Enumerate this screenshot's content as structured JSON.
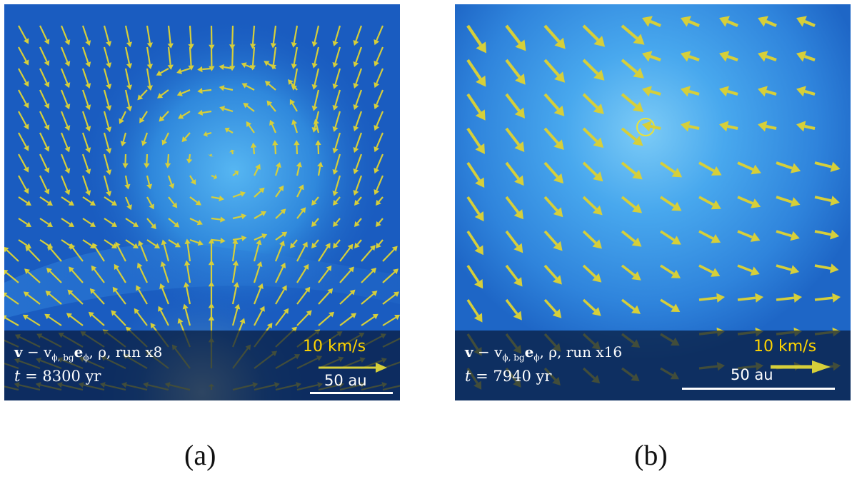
{
  "panels": [
    {
      "id": "a",
      "formula_main": "v",
      "formula_minus": " − v",
      "formula_sub": "ϕ, bg",
      "formula_e": "e",
      "formula_esub": "ϕ",
      "formula_tail": ", ρ, run x8",
      "time_t": "t",
      "time_value": " = 8300 yr",
      "speed_label": "10 km/s",
      "scale_label": "50 au",
      "caption": "(a)"
    },
    {
      "id": "b",
      "formula_main": "v",
      "formula_minus": " − v",
      "formula_sub": "ϕ, bg",
      "formula_e": "e",
      "formula_esub": "ϕ",
      "formula_tail": ", ρ, run x16",
      "time_t": "t",
      "time_value": " = 7940 yr",
      "speed_label": "10 km/s",
      "scale_label": "50 au",
      "caption": "(b)"
    }
  ],
  "colors": {
    "arrow": "#d6cf3a",
    "background_dark": "#1656b8",
    "background_light": "#4fb0f0",
    "overlay": "#081a3a",
    "speed_label": "#ffd400"
  }
}
